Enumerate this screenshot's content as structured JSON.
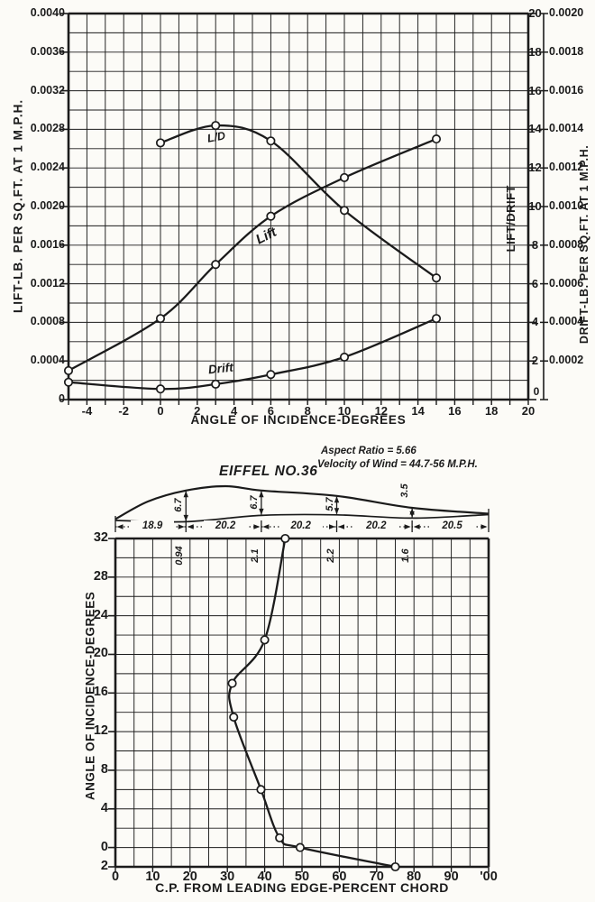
{
  "page": {
    "paper": "#fcfbf7",
    "ink": "#1b1b1b"
  },
  "airfoil": {
    "title": "EIFFEL NO.36",
    "annotation_line1": "Aspect Ratio = 5.66",
    "annotation_line2": "Velocity of Wind = 44.7-56 M.P.H.",
    "chord_segments": [
      {
        "label": "18.9",
        "value": 18.9
      },
      {
        "label": "20.2",
        "value": 20.2
      },
      {
        "label": "20.2",
        "value": 20.2
      },
      {
        "label": "20.2",
        "value": 20.2
      },
      {
        "label": "20.5",
        "value": 20.5
      }
    ],
    "upper_ordinates": [
      {
        "station": 18.9,
        "label": "6.7",
        "value": 6.7
      },
      {
        "station": 39.1,
        "label": "6.7",
        "value": 6.7
      },
      {
        "station": 59.3,
        "label": "5.7",
        "value": 5.7
      },
      {
        "station": 79.5,
        "label": "3.5",
        "value": 3.5
      }
    ],
    "lower_ordinates": [
      {
        "station": 18.9,
        "label": "0.94",
        "value": 0.94
      },
      {
        "station": 39.1,
        "label": "2.1",
        "value": 2.1
      },
      {
        "station": 59.3,
        "label": "2.2",
        "value": 2.2
      },
      {
        "station": 79.5,
        "label": "1.6",
        "value": 1.6
      }
    ]
  },
  "chart_data": [
    {
      "type": "line",
      "title": "",
      "xlabel": "ANGLE OF INCIDENCE-DEGREES",
      "ylabel": "LIFT-LB. PER SQ.FT. AT 1 M.P.H.",
      "ylabel_right": "LIFT/DRIFT",
      "ylabel_far_right": "DRIFT-LB. PER SQ.FT. AT 1 M.P.H.",
      "xlim": [
        -5,
        20
      ],
      "x_grid_step": 1,
      "ylim_lift": [
        0,
        0.004
      ],
      "ylim_ld": [
        0,
        20
      ],
      "ylim_drift": [
        0,
        0.002
      ],
      "grid": true,
      "x_ticks": [
        "-4",
        "-2",
        "0",
        "2",
        "4",
        "6",
        "8",
        "10",
        "12",
        "14",
        "16",
        "18",
        "20"
      ],
      "lift_ticks": [
        "0.0040",
        "0.0036",
        "0.0032",
        "0.0028",
        "0.0024",
        "0.0020",
        "0.0016",
        "0.0012",
        "0.0008",
        "0.0004",
        "0"
      ],
      "ld_ticks": [
        "20",
        "18",
        "16",
        "14",
        "12",
        "10",
        "8",
        "6",
        "4",
        "2"
      ],
      "drift_ticks": [
        "0.0020",
        "0.0018",
        "0.0016",
        "0.0014",
        "0.0012",
        "0.0010",
        "0.0008",
        "0.0006",
        "0.0004",
        "0.0002"
      ],
      "corner_zero": "0",
      "series": [
        {
          "name": "Lift",
          "label": "Lift",
          "axis": "lift",
          "x": [
            -5,
            0,
            3,
            6,
            10,
            15
          ],
          "y": [
            0.0003,
            0.00084,
            0.0014,
            0.0019,
            0.0023,
            0.0027
          ]
        },
        {
          "name": "Drift",
          "label": "Drift",
          "axis": "drift",
          "x": [
            -5,
            0,
            3,
            6,
            10,
            15
          ],
          "y": [
            9e-05,
            5.5e-05,
            8e-05,
            0.00013,
            0.00022,
            0.00042
          ]
        },
        {
          "name": "L/D",
          "label": "L/D",
          "axis": "ld",
          "x": [
            0,
            3,
            6,
            10,
            15
          ],
          "y": [
            13.3,
            14.2,
            13.4,
            9.8,
            6.3
          ]
        }
      ]
    },
    {
      "type": "line",
      "title": "",
      "xlabel": "C.P. FROM LEADING EDGE-PERCENT CHORD",
      "ylabel": "ANGLE OF INCIDENCE-DEGREES",
      "xlim": [
        0,
        100
      ],
      "x_grid_step": 5,
      "ylim": [
        -2,
        32
      ],
      "y_grid_step": 2,
      "grid": true,
      "x_ticks": [
        "0",
        "10",
        "20",
        "30",
        "40",
        "50",
        "60",
        "70",
        "80",
        "90",
        "'00"
      ],
      "y_ticks": [
        "32",
        "28",
        "24",
        "20",
        "16",
        "12",
        "8",
        "4",
        "0",
        "2"
      ],
      "series": [
        {
          "name": "C.P.",
          "axis": "main",
          "x": [
            75,
            49.5,
            44,
            39,
            31.7,
            31.3,
            40,
            45.5
          ],
          "y": [
            -2,
            0,
            1,
            6,
            13.5,
            17,
            21.5,
            32
          ]
        }
      ]
    }
  ]
}
